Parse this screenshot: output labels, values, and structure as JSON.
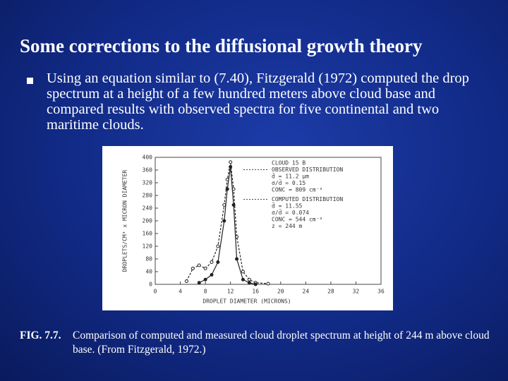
{
  "slide": {
    "title": "Some corrections to the diffusional growth theory",
    "bullets": [
      "Using an equation similar to (7.40), Fitzgerald (1972) computed the drop spectrum at a height of a few hundred meters above cloud base and compared results with observed spectra for five continental and two maritime clouds."
    ],
    "caption": {
      "label": "FIG. 7.7.",
      "text": "Comparison of computed and measured cloud droplet spectrum at height of 244 m above cloud base. (From Fitzgerald, 1972.)"
    }
  },
  "chart_data": {
    "type": "line",
    "x_label": "DROPLET DIAMETER (MICRONS)",
    "y_label": "DROPLETS/CM³ x MICRON DIAMETER",
    "legend_text": [
      "CLOUD 15 B",
      "OBSERVED DISTRIBUTION",
      "d̄ = 11.2 μm",
      "σ/d̄ = 0.15",
      "CONC = 809 cm⁻³",
      "COMPUTED DISTRIBUTION",
      "d̄ = 11.55",
      "σ/d̄ = 0.074",
      "CONC = 544 cm⁻³",
      "z = 244 m"
    ],
    "xlim": [
      0,
      36
    ],
    "xticks": [
      0,
      4,
      8,
      12,
      16,
      20,
      24,
      28,
      32,
      36
    ],
    "ylim": [
      0,
      400
    ],
    "yticks": [
      0,
      40,
      80,
      120,
      160,
      200,
      240,
      280,
      320,
      360,
      400
    ],
    "series": [
      {
        "name": "OBSERVED DISTRIBUTION",
        "color": "#222222",
        "x": [
          5,
          6,
          7,
          8,
          9,
          10,
          11,
          11.5,
          12,
          12.5,
          13,
          14,
          15,
          16,
          18
        ],
        "values": [
          10,
          50,
          60,
          50,
          70,
          120,
          250,
          330,
          385,
          300,
          150,
          40,
          15,
          5,
          2
        ]
      },
      {
        "name": "COMPUTED DISTRIBUTION",
        "color": "#222222",
        "x": [
          7,
          8,
          9,
          10,
          11,
          11.5,
          12,
          12.5,
          13,
          14,
          15,
          16
        ],
        "values": [
          5,
          15,
          30,
          70,
          200,
          300,
          370,
          250,
          80,
          15,
          5,
          0
        ]
      }
    ]
  }
}
